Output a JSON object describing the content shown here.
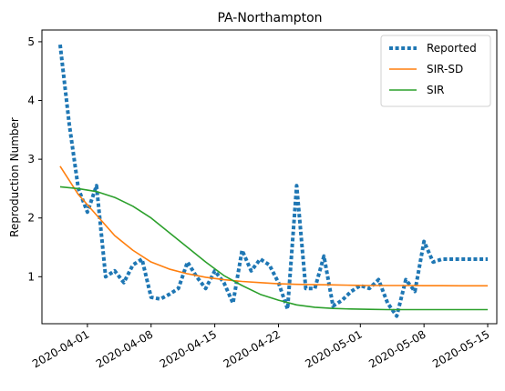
{
  "chart_data": {
    "type": "line",
    "title": "PA-Northampton",
    "xlabel": "",
    "ylabel": "Reproduction Number",
    "x_ticks": [
      "2020-04-01",
      "2020-04-08",
      "2020-04-15",
      "2020-04-22",
      "2020-05-01",
      "2020-05-08",
      "2020-05-15"
    ],
    "y_ticks": [
      1,
      2,
      3,
      4,
      5
    ],
    "xlim": [
      "2020-03-27",
      "2020-05-16"
    ],
    "ylim": [
      0.2,
      5.2
    ],
    "legend_position": "top-right",
    "grid": false,
    "series": [
      {
        "name": "Reported",
        "style": "dotted",
        "color": "#1f77b4",
        "x": [
          "2020-03-29",
          "2020-03-30",
          "2020-03-31",
          "2020-04-01",
          "2020-04-02",
          "2020-04-03",
          "2020-04-04",
          "2020-04-05",
          "2020-04-06",
          "2020-04-07",
          "2020-04-08",
          "2020-04-09",
          "2020-04-10",
          "2020-04-11",
          "2020-04-12",
          "2020-04-13",
          "2020-04-14",
          "2020-04-15",
          "2020-04-16",
          "2020-04-17",
          "2020-04-18",
          "2020-04-19",
          "2020-04-20",
          "2020-04-21",
          "2020-04-22",
          "2020-04-23",
          "2020-04-24",
          "2020-04-25",
          "2020-04-26",
          "2020-04-27",
          "2020-04-28",
          "2020-04-29",
          "2020-04-30",
          "2020-05-01",
          "2020-05-02",
          "2020-05-03",
          "2020-05-04",
          "2020-05-05",
          "2020-05-06",
          "2020-05-07",
          "2020-05-08",
          "2020-05-09",
          "2020-05-10",
          "2020-05-11",
          "2020-05-12",
          "2020-05-13",
          "2020-05-14",
          "2020-05-15"
        ],
        "values": [
          4.95,
          3.6,
          2.5,
          2.1,
          2.55,
          1.0,
          1.1,
          0.9,
          1.2,
          1.3,
          0.65,
          0.62,
          0.7,
          0.8,
          1.25,
          1.0,
          0.8,
          1.1,
          0.9,
          0.55,
          1.45,
          1.1,
          1.3,
          1.2,
          0.9,
          0.45,
          2.55,
          0.8,
          0.8,
          1.35,
          0.5,
          0.6,
          0.75,
          0.85,
          0.8,
          0.95,
          0.55,
          0.33,
          0.95,
          0.75,
          1.6,
          1.25,
          1.3,
          1.3,
          1.3,
          1.3,
          1.3,
          1.3
        ]
      },
      {
        "name": "SIR-SD",
        "style": "solid",
        "color": "#ff7f0e",
        "x": [
          "2020-03-29",
          "2020-03-31",
          "2020-04-02",
          "2020-04-04",
          "2020-04-06",
          "2020-04-08",
          "2020-04-10",
          "2020-04-12",
          "2020-04-14",
          "2020-04-16",
          "2020-04-18",
          "2020-04-20",
          "2020-04-22",
          "2020-04-24",
          "2020-04-26",
          "2020-04-28",
          "2020-04-30",
          "2020-05-02",
          "2020-05-04",
          "2020-05-06",
          "2020-05-08",
          "2020-05-10",
          "2020-05-12",
          "2020-05-14",
          "2020-05-15"
        ],
        "values": [
          2.88,
          2.4,
          2.05,
          1.7,
          1.45,
          1.25,
          1.13,
          1.05,
          0.99,
          0.95,
          0.92,
          0.9,
          0.88,
          0.87,
          0.865,
          0.86,
          0.855,
          0.85,
          0.85,
          0.85,
          0.848,
          0.847,
          0.846,
          0.845,
          0.845
        ]
      },
      {
        "name": "SIR",
        "style": "solid",
        "color": "#2ca02c",
        "x": [
          "2020-03-29",
          "2020-03-31",
          "2020-04-02",
          "2020-04-04",
          "2020-04-06",
          "2020-04-08",
          "2020-04-10",
          "2020-04-12",
          "2020-04-14",
          "2020-04-16",
          "2020-04-18",
          "2020-04-20",
          "2020-04-22",
          "2020-04-24",
          "2020-04-26",
          "2020-04-28",
          "2020-04-30",
          "2020-05-02",
          "2020-05-04",
          "2020-05-06",
          "2020-05-08",
          "2020-05-10",
          "2020-05-12",
          "2020-05-14",
          "2020-05-15"
        ],
        "values": [
          2.53,
          2.5,
          2.45,
          2.35,
          2.2,
          2.0,
          1.75,
          1.5,
          1.25,
          1.02,
          0.85,
          0.7,
          0.6,
          0.52,
          0.48,
          0.46,
          0.45,
          0.445,
          0.44,
          0.44,
          0.44,
          0.44,
          0.44,
          0.44,
          0.44
        ]
      }
    ]
  }
}
